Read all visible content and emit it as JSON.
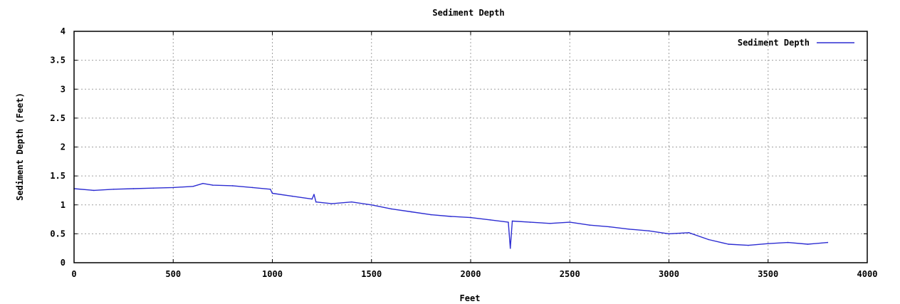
{
  "chart_data": {
    "type": "line",
    "title": "Sediment Depth",
    "xlabel": "Feet",
    "ylabel": "Sediment Depth (Feet)",
    "xlim": [
      0,
      4000
    ],
    "ylim": [
      0,
      4
    ],
    "x_ticks": [
      "0",
      "500",
      "1000",
      "1500",
      "2000",
      "2500",
      "3000",
      "3500",
      "4000"
    ],
    "y_ticks": [
      "0",
      "0.5",
      "1",
      "1.5",
      "2",
      "2.5",
      "3",
      "3.5",
      "4"
    ],
    "grid": true,
    "legend_position": "top-right",
    "series": [
      {
        "name": "Sediment Depth",
        "color": "#2d2dd2",
        "x": [
          0,
          100,
          200,
          300,
          400,
          500,
          600,
          650,
          700,
          800,
          900,
          990,
          1000,
          1100,
          1200,
          1210,
          1220,
          1300,
          1400,
          1500,
          1600,
          1700,
          1800,
          1900,
          2000,
          2100,
          2190,
          2200,
          2210,
          2300,
          2400,
          2500,
          2600,
          2700,
          2800,
          2900,
          3000,
          3100,
          3200,
          3300,
          3400,
          3500,
          3600,
          3700,
          3800
        ],
        "y": [
          1.28,
          1.25,
          1.27,
          1.28,
          1.29,
          1.3,
          1.32,
          1.37,
          1.34,
          1.33,
          1.3,
          1.27,
          1.2,
          1.15,
          1.1,
          1.18,
          1.05,
          1.02,
          1.05,
          1.0,
          0.93,
          0.88,
          0.83,
          0.8,
          0.78,
          0.74,
          0.7,
          0.25,
          0.72,
          0.7,
          0.68,
          0.7,
          0.65,
          0.62,
          0.58,
          0.55,
          0.5,
          0.52,
          0.4,
          0.32,
          0.3,
          0.33,
          0.35,
          0.32,
          0.35
        ]
      }
    ]
  }
}
